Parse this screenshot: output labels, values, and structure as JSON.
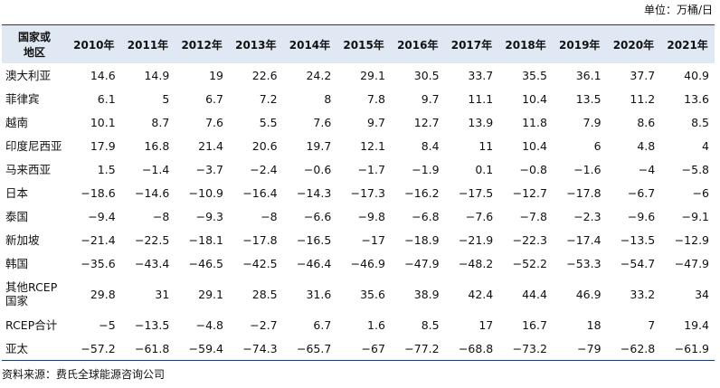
{
  "unit": "单位：万桶/日",
  "table": {
    "header": [
      "国家或\n地区",
      "2010年",
      "2011年",
      "2012年",
      "2013年",
      "2014年",
      "2015年",
      "2016年",
      "2017年",
      "2018年",
      "2019年",
      "2020年",
      "2021年"
    ],
    "rows": [
      [
        "澳大利亚",
        "14.6",
        "14.9",
        "19",
        "22.6",
        "24.2",
        "29.1",
        "30.5",
        "33.7",
        "35.5",
        "36.1",
        "37.7",
        "40.9"
      ],
      [
        "菲律宾",
        "6.1",
        "5",
        "6.7",
        "7.2",
        "8",
        "7.8",
        "9.7",
        "11.1",
        "10.4",
        "13.5",
        "11.2",
        "13.6"
      ],
      [
        "越南",
        "10.1",
        "8.7",
        "7.6",
        "5.5",
        "7.6",
        "9.7",
        "12.7",
        "13.9",
        "11.8",
        "7.9",
        "8.6",
        "8.5"
      ],
      [
        "印度尼西亚",
        "17.9",
        "16.8",
        "21.4",
        "20.6",
        "19.7",
        "12.1",
        "8.4",
        "11",
        "10.4",
        "6",
        "4.8",
        "4"
      ],
      [
        "马来西亚",
        "1.5",
        "−1.4",
        "−3.7",
        "−2.4",
        "−0.6",
        "−1.7",
        "−1.9",
        "0.1",
        "−0.8",
        "−1.6",
        "−4",
        "−5.8"
      ],
      [
        "日本",
        "−18.6",
        "−14.6",
        "−10.9",
        "−16.4",
        "−14.3",
        "−17.3",
        "−16.2",
        "−17.5",
        "−12.7",
        "−17.8",
        "−6.7",
        "−6"
      ],
      [
        "泰国",
        "−9.4",
        "−8",
        "−9.3",
        "−8",
        "−6.6",
        "−9.8",
        "−6.8",
        "−7.6",
        "−7.8",
        "−2.3",
        "−9.6",
        "−9.1"
      ],
      [
        "新加坡",
        "−21.4",
        "−22.5",
        "−18.1",
        "−17.8",
        "−16.5",
        "−17",
        "−18.9",
        "−21.9",
        "−22.3",
        "−17.4",
        "−13.5",
        "−12.9"
      ],
      [
        "韩国",
        "−35.6",
        "−43.4",
        "−46.5",
        "−42.5",
        "−46.4",
        "−46.9",
        "−47.9",
        "−48.2",
        "−52.2",
        "−53.3",
        "−54.7",
        "−47.9"
      ],
      [
        "其他RCEP\n国家",
        "29.8",
        "31",
        "29.1",
        "28.5",
        "31.6",
        "35.6",
        "38.9",
        "42.4",
        "44.4",
        "46.9",
        "33.2",
        "34"
      ],
      [
        "RCEP合计",
        "−5",
        "−13.5",
        "−4.8",
        "−2.7",
        "6.7",
        "1.6",
        "8.5",
        "17",
        "16.7",
        "18",
        "7",
        "19.4"
      ],
      [
        "亚太",
        "−57.2",
        "−61.8",
        "−59.4",
        "−74.3",
        "−65.7",
        "−67",
        "−77.2",
        "−68.8",
        "−73.2",
        "−79",
        "−62.8",
        "−61.9"
      ]
    ]
  },
  "source": "资料来源：费氏全球能源咨询公司"
}
